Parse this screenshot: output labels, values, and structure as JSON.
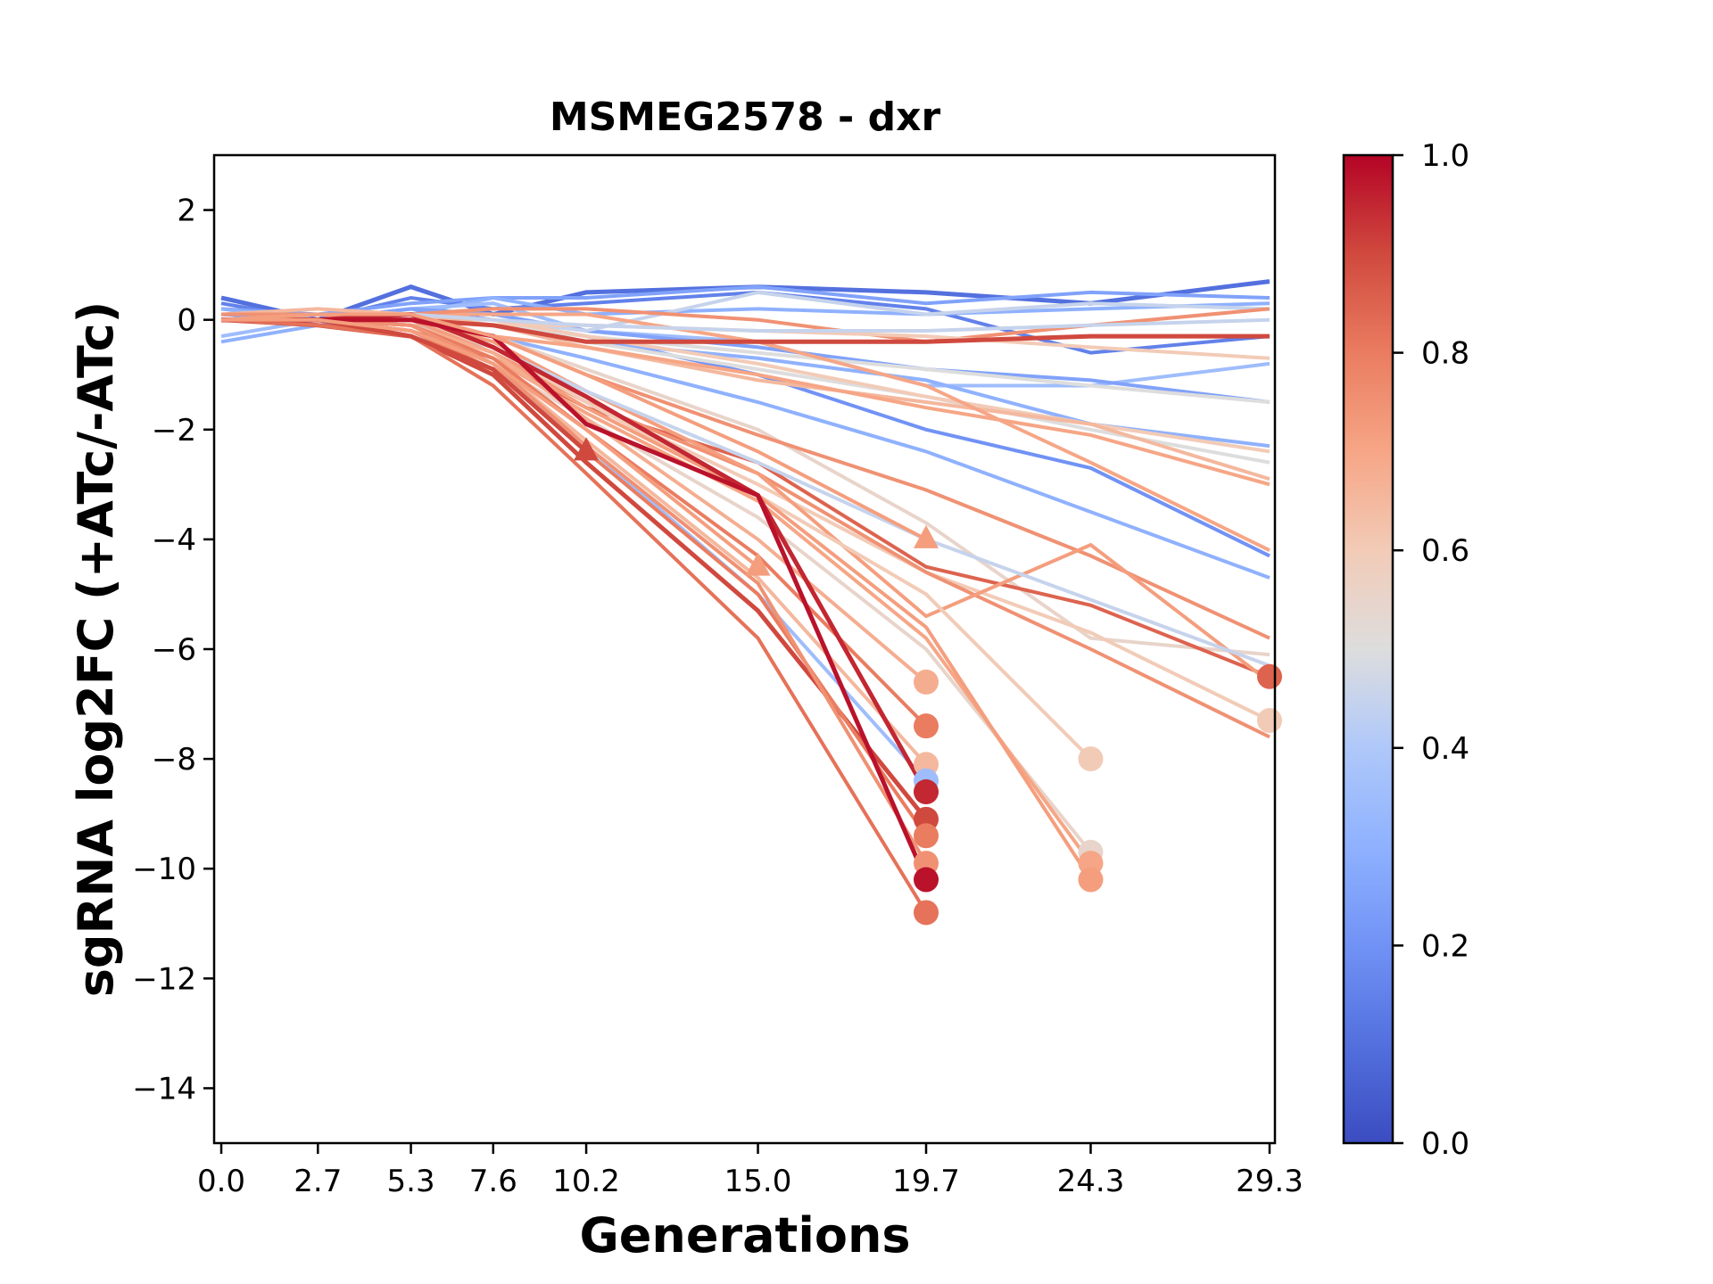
{
  "chart_data": {
    "type": "line",
    "title": "MSMEG2578 - dxr",
    "xlabel": "Generations",
    "ylabel": "sgRNA log2FC (+ATc/-ATc)",
    "x": [
      0.0,
      2.7,
      5.3,
      7.6,
      10.2,
      15.0,
      19.7,
      24.3,
      29.3
    ],
    "x_tick_labels": [
      "0.0",
      "2.7",
      "5.3",
      "7.6",
      "10.2",
      "15.0",
      "19.7",
      "24.3",
      "29.3"
    ],
    "y_ticks": [
      2,
      0,
      -2,
      -4,
      -6,
      -8,
      -10,
      -12,
      -14
    ],
    "y_tick_labels": [
      "2",
      "0",
      "−2",
      "−4",
      "−6",
      "−8",
      "−10",
      "−12",
      "−14"
    ],
    "xlim": [
      -0.2,
      29.45
    ],
    "ylim": [
      -15,
      3
    ],
    "grid": false,
    "colormap": "coolwarm",
    "colorbar": {
      "range": [
        0.0,
        1.0
      ],
      "ticks": [
        0.0,
        0.2,
        0.4,
        0.6,
        0.8,
        1.0
      ],
      "tick_labels": [
        "0.0",
        "0.2",
        "0.4",
        "0.6",
        "0.8",
        "1.0"
      ],
      "position": "right"
    },
    "series": [
      {
        "c": 0.1,
        "values": [
          0.4,
          0.0,
          0.6,
          0.1,
          0.5,
          0.6,
          0.5,
          0.3,
          0.7
        ],
        "marker": "none"
      },
      {
        "c": 0.15,
        "values": [
          0.3,
          0.0,
          0.4,
          0.2,
          0.3,
          0.5,
          0.2,
          -0.6,
          -0.3
        ],
        "marker": "none"
      },
      {
        "c": 0.25,
        "values": [
          0.2,
          0.1,
          0.3,
          0.4,
          0.4,
          0.6,
          0.3,
          0.5,
          0.4
        ],
        "marker": "none"
      },
      {
        "c": 0.3,
        "values": [
          -0.4,
          -0.1,
          0.1,
          0.4,
          0.1,
          0.2,
          0.1,
          0.2,
          0.3
        ],
        "marker": "none"
      },
      {
        "c": 0.35,
        "values": [
          -0.3,
          0.0,
          0.2,
          0.3,
          -0.2,
          -0.4,
          -1.2,
          -1.2,
          -0.8
        ],
        "marker": "none"
      },
      {
        "c": 0.2,
        "values": [
          0.1,
          0.0,
          0.2,
          0.0,
          -0.3,
          -1.0,
          -2.0,
          -2.7,
          -4.3
        ],
        "marker": "none"
      },
      {
        "c": 0.3,
        "values": [
          0.0,
          0.0,
          0.1,
          -0.3,
          -0.7,
          -1.5,
          -2.4,
          -3.5,
          -4.7
        ],
        "marker": "none"
      },
      {
        "c": 0.25,
        "values": [
          0.1,
          0.0,
          0.2,
          0.1,
          -0.2,
          -0.5,
          -0.9,
          -1.1,
          -1.5
        ],
        "marker": "none"
      },
      {
        "c": 0.3,
        "values": [
          0.2,
          0.0,
          0.1,
          -0.1,
          -0.4,
          -0.7,
          -1.1,
          -1.9,
          -2.3
        ],
        "marker": "none"
      },
      {
        "c": 0.45,
        "values": [
          0.0,
          0.1,
          0.1,
          0.0,
          -0.2,
          0.5,
          0.1,
          0.3,
          0.2
        ],
        "marker": "none"
      },
      {
        "c": 0.5,
        "values": [
          0.0,
          0.0,
          0.0,
          0.0,
          -0.4,
          -0.9,
          -1.4,
          -2.0,
          -2.6
        ],
        "marker": "none"
      },
      {
        "c": 0.5,
        "values": [
          0.0,
          0.0,
          0.0,
          -0.1,
          -0.3,
          -0.6,
          -0.9,
          -1.2,
          -1.5
        ],
        "marker": "none"
      },
      {
        "c": 0.55,
        "values": [
          0.0,
          0.1,
          0.1,
          -0.3,
          -0.9,
          -2.0,
          -3.7,
          -5.8,
          -6.1
        ],
        "marker": "none"
      },
      {
        "c": 0.6,
        "values": [
          0.0,
          0.1,
          0.1,
          0.0,
          -0.3,
          -0.8,
          -1.4,
          -1.9,
          -2.4
        ],
        "marker": "none"
      },
      {
        "c": 0.65,
        "values": [
          0.1,
          0.2,
          0.1,
          -0.1,
          -0.5,
          -1.1,
          -1.5,
          -1.9,
          -2.9
        ],
        "marker": "none"
      },
      {
        "c": 0.7,
        "values": [
          0.0,
          0.1,
          0.0,
          -0.3,
          -0.5,
          -1.0,
          -1.6,
          -2.1,
          -3.0
        ],
        "marker": "none"
      },
      {
        "c": 0.7,
        "values": [
          0.0,
          0.1,
          0.1,
          0.1,
          0.1,
          -0.4,
          -1.2,
          -2.6,
          -4.2
        ],
        "marker": "none"
      },
      {
        "c": 0.75,
        "values": [
          0.1,
          0.1,
          0.1,
          0.2,
          0.2,
          0.0,
          -0.4,
          -0.1,
          0.2
        ],
        "marker": "none"
      },
      {
        "c": 0.6,
        "values": [
          0.0,
          0.0,
          0.0,
          -0.1,
          -0.1,
          -0.2,
          -0.3,
          -0.5,
          -0.7
        ],
        "marker": "none"
      },
      {
        "c": 0.45,
        "values": [
          0.0,
          0.0,
          0.1,
          0.0,
          -0.1,
          -0.2,
          -0.2,
          -0.1,
          0.0
        ],
        "marker": "none"
      },
      {
        "c": 0.9,
        "values": [
          0.0,
          0.0,
          0.0,
          -0.1,
          -0.4,
          -0.4,
          -0.4,
          -0.3,
          -0.3
        ],
        "marker": "none"
      },
      {
        "c": 0.85,
        "values": [
          0.0,
          0.0,
          -0.2,
          -0.7,
          -1.6,
          -2.6,
          -4.5,
          -5.2,
          -6.5
        ],
        "marker": "circle"
      },
      {
        "c": 0.6,
        "values": [
          0.0,
          0.0,
          0.0,
          -0.5,
          -1.5,
          -3.0,
          -4.6,
          -5.7,
          -7.3
        ],
        "marker": "circle"
      },
      {
        "c": 0.75,
        "values": [
          0.0,
          0.0,
          -0.1,
          -0.6,
          -1.5,
          -2.8,
          -4.6,
          -6.0,
          -7.6
        ],
        "marker": "none"
      },
      {
        "c": 0.75,
        "values": [
          0.0,
          0.0,
          -0.1,
          -0.3,
          -1.0,
          -2.1,
          -3.1,
          -4.3,
          -5.8
        ],
        "marker": "none"
      },
      {
        "c": 0.72,
        "values": [
          0.0,
          0.1,
          0.0,
          -0.4,
          -1.3,
          -2.8,
          -5.4,
          -4.1,
          -6.6
        ],
        "marker": "none"
      },
      {
        "c": 0.45,
        "values": [
          0.0,
          0.0,
          -0.1,
          -0.5,
          -1.3,
          -2.6,
          -4.0,
          -5.1,
          -6.3
        ],
        "marker": "none"
      },
      {
        "c": 0.6,
        "values": [
          0.0,
          0.1,
          0.0,
          -0.5,
          -1.5,
          -3.2,
          -5.0,
          -8.0
        ],
        "marker": "circle"
      },
      {
        "c": 0.55,
        "values": [
          0.0,
          0.0,
          -0.1,
          -0.8,
          -1.8,
          -3.6,
          -6.0,
          -9.7
        ],
        "marker": "circle"
      },
      {
        "c": 0.7,
        "values": [
          0.0,
          0.0,
          -0.1,
          -0.7,
          -1.7,
          -3.3,
          -5.8,
          -9.9
        ],
        "marker": "circle"
      },
      {
        "c": 0.72,
        "values": [
          0.0,
          0.1,
          0.0,
          -0.6,
          -1.6,
          -3.2,
          -5.6,
          -10.2
        ],
        "marker": "circle"
      },
      {
        "c": 0.68,
        "values": [
          0.0,
          0.0,
          -0.1,
          -0.6,
          -1.8,
          -4.0,
          -6.6
        ],
        "marker": "circle"
      },
      {
        "c": 0.8,
        "values": [
          0.0,
          0.0,
          -0.1,
          -0.7,
          -2.0,
          -4.3,
          -7.4
        ],
        "marker": "circle"
      },
      {
        "c": 0.65,
        "values": [
          0.0,
          0.0,
          -0.2,
          -0.8,
          -2.2,
          -4.7,
          -8.1
        ],
        "marker": "circle"
      },
      {
        "c": 0.35,
        "values": [
          0.0,
          0.0,
          -0.2,
          -0.9,
          -2.3,
          -5.0,
          -8.4
        ],
        "marker": "circle"
      },
      {
        "c": 0.95,
        "values": [
          0.0,
          0.0,
          0.1,
          -0.5,
          -1.4,
          -3.2,
          -8.6
        ],
        "marker": "circle"
      },
      {
        "c": 0.9,
        "values": [
          0.0,
          -0.1,
          -0.3,
          -1.0,
          -2.6,
          -5.3,
          -9.1
        ],
        "marker": "circle"
      },
      {
        "c": 0.8,
        "values": [
          0.0,
          0.0,
          -0.2,
          -0.9,
          -2.4,
          -5.0,
          -9.4
        ],
        "marker": "circle"
      },
      {
        "c": 0.75,
        "values": [
          0.0,
          0.0,
          -0.1,
          -0.8,
          -2.3,
          -4.8,
          -9.9
        ],
        "marker": "circle"
      },
      {
        "c": 0.98,
        "values": [
          0.0,
          0.0,
          0.0,
          -0.3,
          -1.9,
          -3.2,
          -10.2
        ],
        "marker": "circle"
      },
      {
        "c": 0.82,
        "values": [
          0.0,
          -0.1,
          -0.3,
          -1.2,
          -2.8,
          -5.8,
          -10.8
        ],
        "marker": "circle"
      },
      {
        "c": 0.9,
        "values": [
          0.0,
          0.0,
          -0.3,
          -0.9,
          -2.4
        ],
        "marker": "triangle"
      },
      {
        "c": 0.72,
        "values": [
          0.0,
          0.0,
          -0.2,
          -0.8,
          -2.0,
          -4.5
        ],
        "marker": "triangle"
      },
      {
        "c": 0.72,
        "values": [
          0.0,
          0.1,
          0.1,
          -0.3,
          -1.0,
          -2.4,
          -4.0
        ],
        "marker": "triangle"
      }
    ]
  }
}
